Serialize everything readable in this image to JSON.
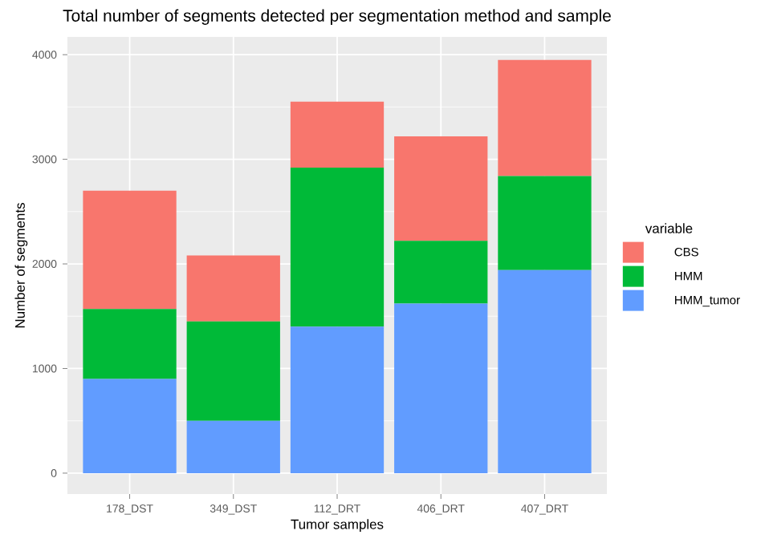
{
  "chart_data": {
    "type": "bar",
    "stacked": true,
    "title": "Total number of segments detected per segmentation method and sample",
    "xlabel": "Tumor samples",
    "ylabel": "Number of segments",
    "legend_title": "variable",
    "categories": [
      "178_DST",
      "349_DST",
      "112_DRT",
      "406_DRT",
      "407_DRT"
    ],
    "series": [
      {
        "name": "HMM_tumor",
        "color": "#619cff",
        "values": [
          900,
          500,
          1400,
          1620,
          1940
        ]
      },
      {
        "name": "HMM",
        "color": "#00ba38",
        "values": [
          670,
          950,
          1520,
          600,
          900
        ]
      },
      {
        "name": "CBS",
        "color": "#f8766d",
        "values": [
          1130,
          630,
          630,
          1000,
          1110
        ]
      }
    ],
    "ylim": [
      -200,
      4170
    ],
    "yticks": [
      0,
      1000,
      2000,
      3000,
      4000
    ],
    "grid": true,
    "legend": "right"
  }
}
